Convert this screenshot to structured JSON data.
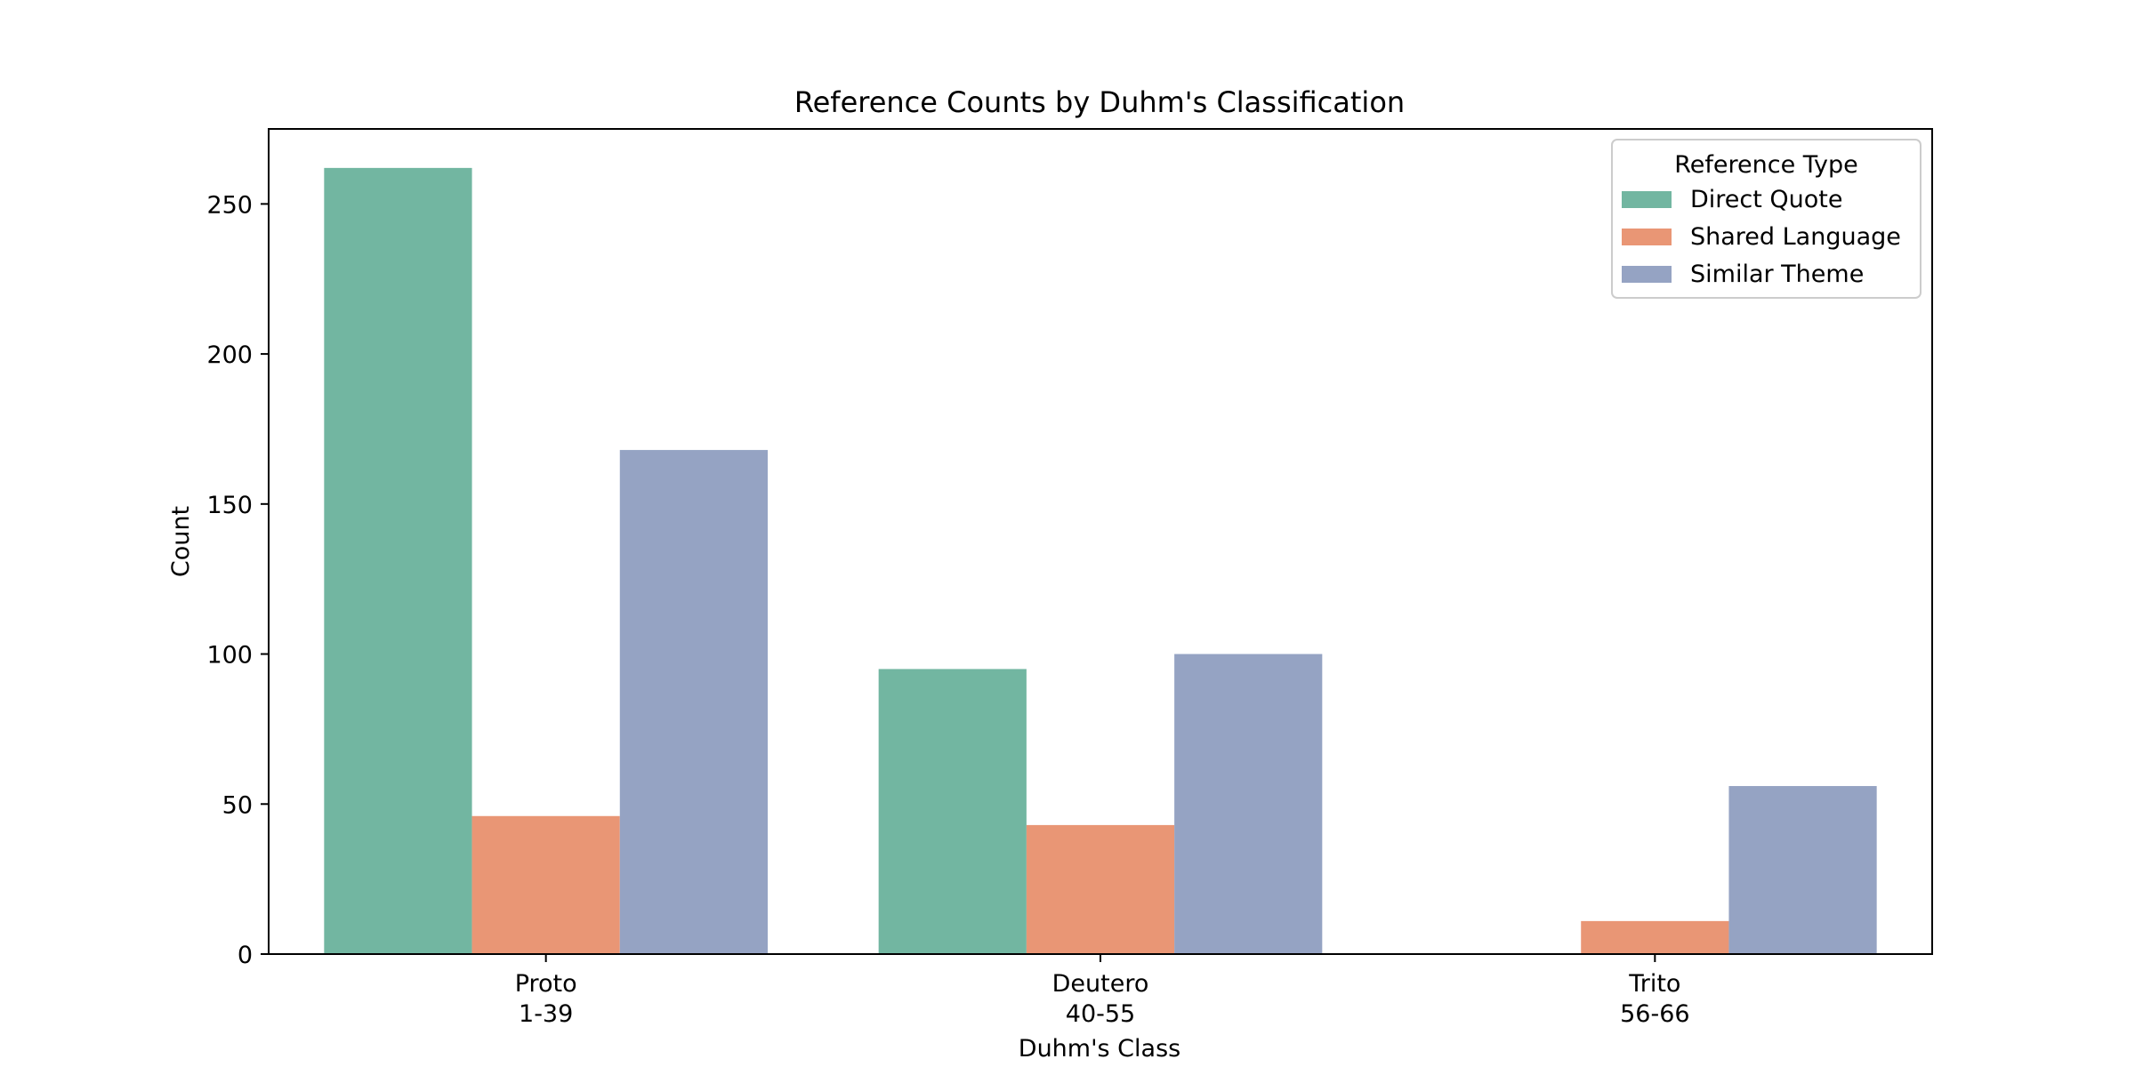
{
  "chart_data": {
    "type": "bar",
    "title": "Reference Counts by Duhm's Classification",
    "xlabel": "Duhm's Class",
    "ylabel": "Count",
    "categories": [
      [
        "Proto",
        "1-39"
      ],
      [
        "Deutero",
        "40-55"
      ],
      [
        "Trito",
        "56-66"
      ]
    ],
    "series": [
      {
        "name": "Direct Quote",
        "color": "#72b6a1",
        "values": [
          262,
          95,
          0
        ]
      },
      {
        "name": "Shared Language",
        "color": "#e99675",
        "values": [
          46,
          43,
          11
        ]
      },
      {
        "name": "Similar Theme",
        "color": "#95a3c3",
        "values": [
          168,
          100,
          56
        ]
      }
    ],
    "ylim": [
      0,
      275
    ],
    "yticks": [
      0,
      50,
      100,
      150,
      200,
      250
    ],
    "legend": {
      "title": "Reference Type",
      "placement": "top-right"
    },
    "grid": false
  }
}
